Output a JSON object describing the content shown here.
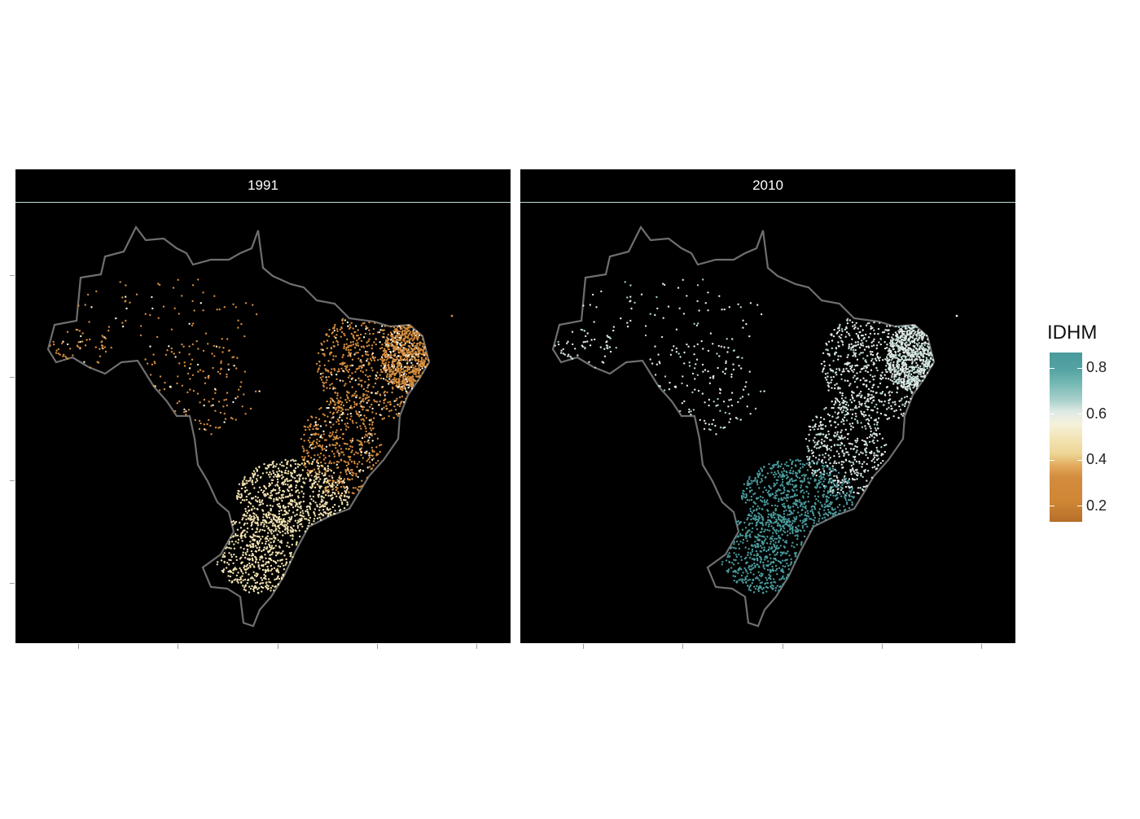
{
  "panels": [
    {
      "label": "1991",
      "year": 1991,
      "dominant_color": "#d38b3d",
      "secondary_color": "#f2e2b0"
    },
    {
      "label": "2010",
      "year": 2010,
      "dominant_color": "#4a9a9c",
      "secondary_color": "#dfe9e4"
    }
  ],
  "legend": {
    "title": "IDHM",
    "ticks": [
      "0.8",
      "0.6",
      "0.4",
      "0.2"
    ],
    "tick_values": [
      0.8,
      0.6,
      0.4,
      0.2
    ],
    "range": [
      0.1,
      0.86
    ],
    "colors": {
      "low": "#b56f2a",
      "mid_low": "#d38b3d",
      "mid": "#f5f1dc",
      "high": "#4a9a9c"
    }
  },
  "colors": {
    "background": "#000000",
    "outline": "#6f6f6f",
    "strip_text": "#ffffff"
  }
}
